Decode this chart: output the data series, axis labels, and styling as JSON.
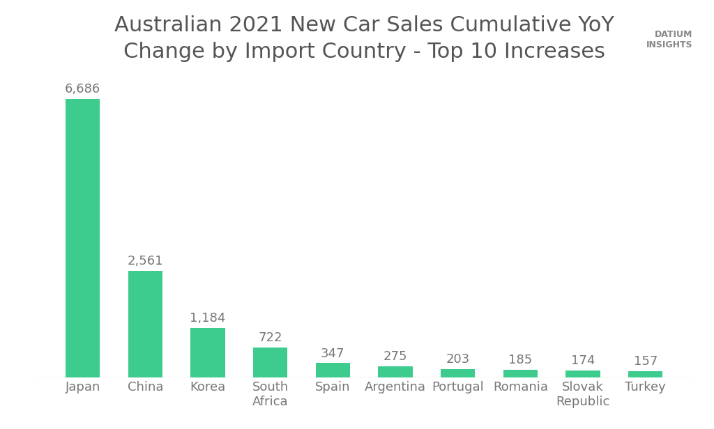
{
  "title_line1": "Australian 2021 New Car Sales Cumulative YoY",
  "title_line2": "Change by Import Country - Top 10 Increases",
  "categories": [
    "Japan",
    "China",
    "Korea",
    "South\nAfrica",
    "Spain",
    "Argentina",
    "Portugal",
    "Romania",
    "Slovak\nRepublic",
    "Turkey"
  ],
  "values": [
    6686,
    2561,
    1184,
    722,
    347,
    275,
    203,
    185,
    174,
    157
  ],
  "value_labels": [
    "6,686",
    "2,561",
    "1,184",
    "722",
    "347",
    "275",
    "203",
    "185",
    "174",
    "157"
  ],
  "bar_color": "#3DCC8E",
  "background_color": "#ffffff",
  "title_color": "#555555",
  "label_color": "#777777",
  "tick_color": "#aaaaaa",
  "ylim": [
    0,
    7200
  ],
  "title_fontsize": 22,
  "label_fontsize": 13,
  "tick_fontsize": 13
}
